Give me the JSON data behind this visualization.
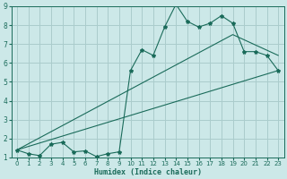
{
  "xlabel": "Humidex (Indice chaleur)",
  "bg_color": "#cce8e8",
  "grid_color": "#aacccc",
  "line_color": "#1a6b5a",
  "xlim": [
    -0.5,
    23.5
  ],
  "ylim": [
    1,
    9
  ],
  "xtick_step": 1,
  "ytick_step": 1,
  "line1_x": [
    0,
    1,
    2,
    3,
    4,
    5,
    6,
    7,
    8,
    9,
    10,
    11,
    12,
    13,
    14,
    15,
    16,
    17,
    18,
    19,
    20,
    21,
    22,
    23
  ],
  "line1_y": [
    1.4,
    1.2,
    1.1,
    1.7,
    1.8,
    1.3,
    1.35,
    1.05,
    1.2,
    1.3,
    5.6,
    6.7,
    6.4,
    7.9,
    9.1,
    8.2,
    7.9,
    8.1,
    8.5,
    8.1,
    6.6,
    6.6,
    6.4,
    5.6
  ],
  "line2_x": [
    0,
    19,
    23
  ],
  "line2_y": [
    1.4,
    7.5,
    6.4
  ],
  "line3_x": [
    0,
    23
  ],
  "line3_y": [
    1.4,
    5.6
  ],
  "marker": "*",
  "markersize": 3,
  "linewidth": 0.8,
  "xlabel_fontsize": 6,
  "tick_fontsize": 5
}
